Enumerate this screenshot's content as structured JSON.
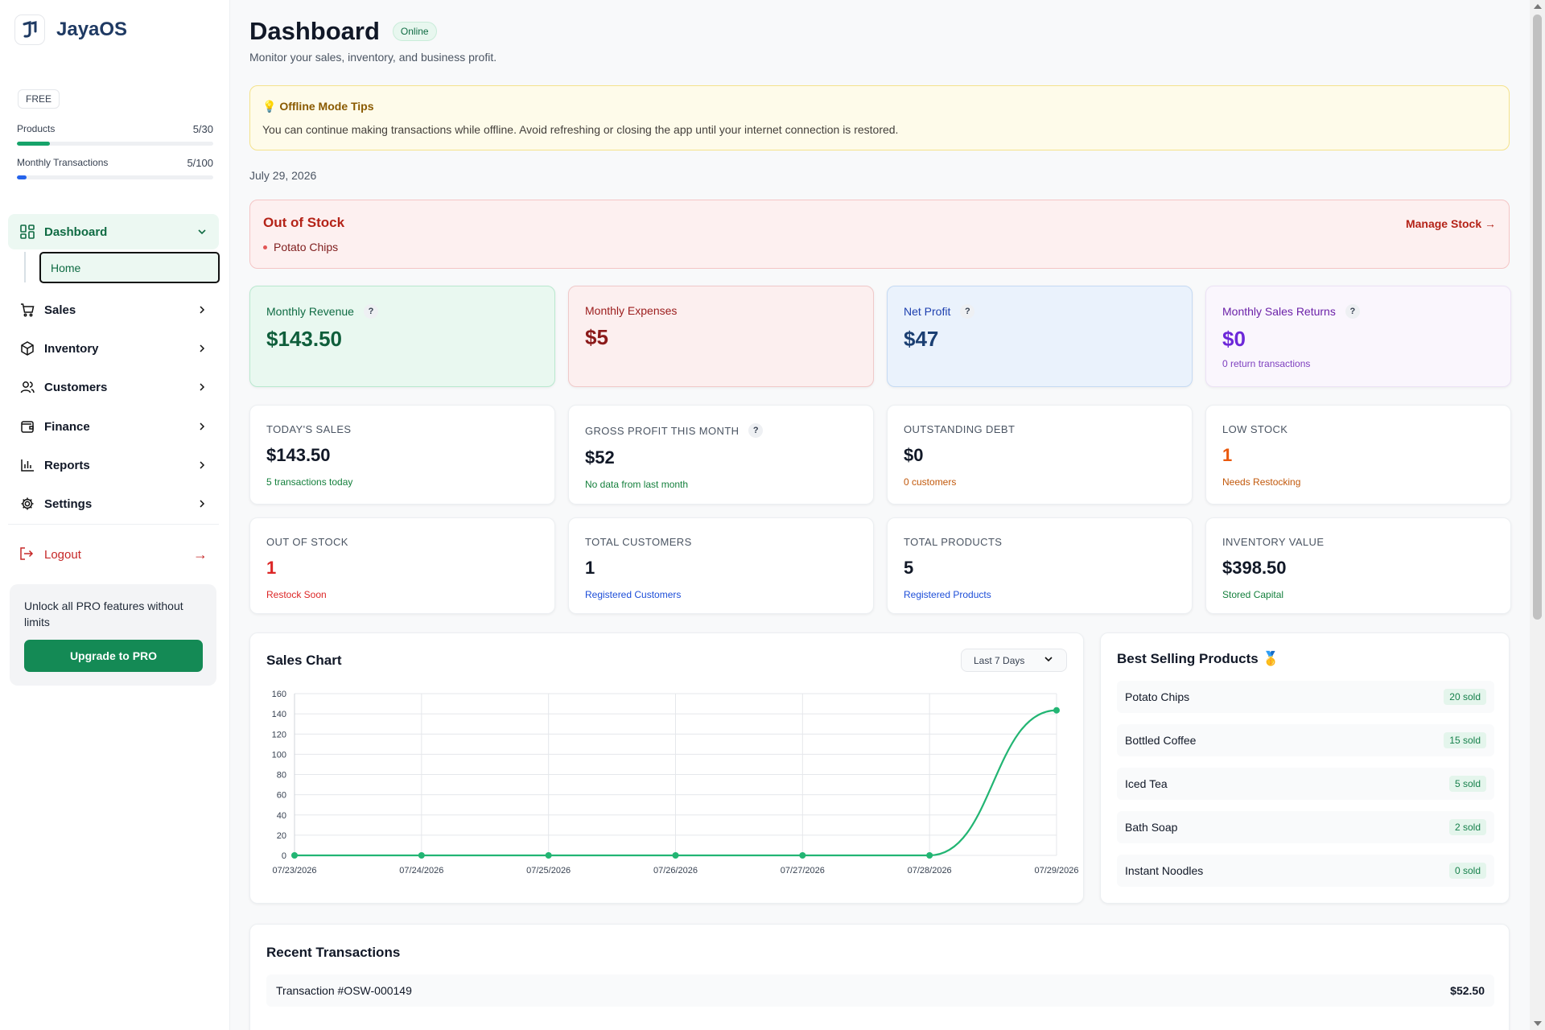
{
  "app": {
    "name": "JayaOS"
  },
  "plan": {
    "badge": "FREE",
    "quotas": [
      {
        "label": "Products",
        "value": "5/30",
        "fraction": 0.1667,
        "color": "#16a36a"
      },
      {
        "label": "Monthly Transactions",
        "value": "5/100",
        "fraction": 0.05,
        "color": "#2563eb"
      }
    ]
  },
  "sidebar": {
    "items": [
      {
        "label": "Dashboard",
        "icon": "grid-icon",
        "active": true
      },
      {
        "label": "Home",
        "sub": true
      },
      {
        "label": "Sales",
        "icon": "cart-icon"
      },
      {
        "label": "Inventory",
        "icon": "box-icon"
      },
      {
        "label": "Customers",
        "icon": "users-icon"
      },
      {
        "label": "Finance",
        "icon": "wallet-icon"
      },
      {
        "label": "Reports",
        "icon": "bar-chart-icon"
      },
      {
        "label": "Settings",
        "icon": "gear-icon"
      }
    ],
    "logout": "Logout",
    "promo": {
      "text": "Unlock all PRO features without limits",
      "button": "Upgrade to PRO"
    }
  },
  "header": {
    "title": "Dashboard",
    "status": "Online",
    "subtitle": "Monitor your sales, inventory, and business profit."
  },
  "tips": {
    "title": "Offline Mode Tips",
    "text": "You can continue making transactions while offline. Avoid refreshing or closing the app until your internet connection is restored."
  },
  "date": "July 29, 2026",
  "out_of_stock_alert": {
    "title": "Out of Stock",
    "items": [
      "Potato Chips"
    ],
    "action": "Manage Stock →"
  },
  "metric_cards": [
    {
      "label": "Monthly Revenue",
      "help": "?",
      "value": "$143.50",
      "note": "",
      "bg": "#e9f8f0",
      "border": "#b9e8cf",
      "label_color": "#0f6b43",
      "value_color": "#0f5e3b"
    },
    {
      "label": "Monthly Expenses",
      "help": "",
      "value": "$5",
      "note": "",
      "bg": "#fcefef",
      "border": "#f0c9c9",
      "label_color": "#9b1c1c",
      "value_color": "#8b1a1a"
    },
    {
      "label": "Net Profit",
      "help": "?",
      "value": "$47",
      "note": "",
      "bg": "#eaf2fc",
      "border": "#c5daf3",
      "label_color": "#1e40af",
      "value_color": "#1b3f72"
    },
    {
      "label": "Monthly Sales Returns",
      "help": "?",
      "value": "$0",
      "note": "0 return transactions",
      "bg": "#faf6fd",
      "border": "#ece2f5",
      "label_color": "#6b21a8",
      "value_color": "#6d28d9"
    }
  ],
  "stat_cards": [
    {
      "label": "TODAY'S SALES",
      "help": "",
      "value": "$143.50",
      "note": "5 transactions today",
      "value_color": "#111827",
      "note_color": "#15803d"
    },
    {
      "label": "GROSS PROFIT THIS MONTH",
      "help": "?",
      "value": "$52",
      "note": "No data from last month",
      "value_color": "#111827",
      "note_color": "#15803d"
    },
    {
      "label": "OUTSTANDING DEBT",
      "help": "",
      "value": "$0",
      "note": "0 customers",
      "value_color": "#111827",
      "note_color": "#c2590c"
    },
    {
      "label": "LOW STOCK",
      "help": "",
      "value": "1",
      "note": "Needs Restocking",
      "value_color": "#ea580c",
      "note_color": "#c2590c"
    },
    {
      "label": "OUT OF STOCK",
      "help": "",
      "value": "1",
      "note": "Restock Soon",
      "value_color": "#dc2626",
      "note_color": "#dc2626"
    },
    {
      "label": "TOTAL CUSTOMERS",
      "help": "",
      "value": "1",
      "note": "Registered Customers",
      "value_color": "#111827",
      "note_color": "#1d4ed8"
    },
    {
      "label": "TOTAL PRODUCTS",
      "help": "",
      "value": "5",
      "note": "Registered Products",
      "value_color": "#111827",
      "note_color": "#1d4ed8"
    },
    {
      "label": "INVENTORY VALUE",
      "help": "",
      "value": "$398.50",
      "note": "Stored Capital",
      "value_color": "#111827",
      "note_color": "#15803d"
    }
  ],
  "sales_chart": {
    "title": "Sales Chart",
    "range_selected": "Last 7 Days"
  },
  "chart_data": {
    "type": "line",
    "title": "Sales Chart",
    "xlabel": "",
    "ylabel": "",
    "x": [
      "07/23/2026",
      "07/24/2026",
      "07/25/2026",
      "07/26/2026",
      "07/27/2026",
      "07/28/2026",
      "07/29/2026"
    ],
    "series": [
      {
        "values": [
          0,
          0,
          0,
          0,
          0,
          0,
          143.5
        ]
      }
    ],
    "ylim": [
      0,
      160
    ],
    "yticks": [
      0,
      20,
      40,
      60,
      80,
      100,
      120,
      140,
      160
    ],
    "grid": true,
    "legend": "none",
    "color": "#22b573"
  },
  "best_selling": {
    "title": "Best Selling Products",
    "items": [
      {
        "name": "Potato Chips",
        "sold": "20 sold"
      },
      {
        "name": "Bottled Coffee",
        "sold": "15 sold"
      },
      {
        "name": "Iced Tea",
        "sold": "5 sold"
      },
      {
        "name": "Bath Soap",
        "sold": "2 sold"
      },
      {
        "name": "Instant Noodles",
        "sold": "0 sold"
      }
    ]
  },
  "recent_transactions": {
    "title": "Recent Transactions",
    "items": [
      {
        "id": "Transaction #OSW-000149",
        "amount": "$52.50"
      }
    ]
  }
}
